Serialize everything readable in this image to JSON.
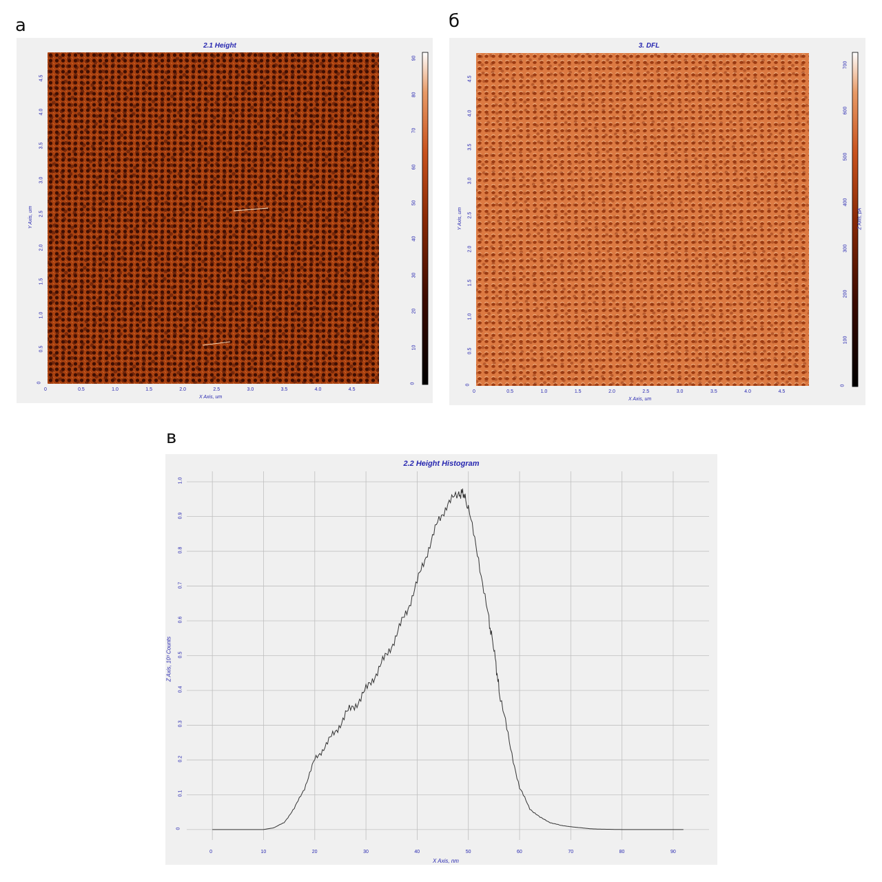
{
  "labels": {
    "a": "а",
    "b": "б",
    "c": "в"
  },
  "colors": {
    "frame_bg": "#f0f0f0",
    "axis_text": "#2727b0",
    "curve": "#333333",
    "grid": "#bfbfbf"
  },
  "chart_data": [
    {
      "type": "heatmap",
      "title": "2.1 Height",
      "xlabel": "X Axis, um",
      "ylabel": "Y Axis, um",
      "zlabel": "",
      "xlim": [
        0,
        4.9
      ],
      "ylim": [
        0,
        4.9
      ],
      "x_ticks": [
        "0",
        "0.5",
        "1.0",
        "1.5",
        "2.0",
        "2.5",
        "3.0",
        "3.5",
        "4.0",
        "4.5"
      ],
      "y_ticks": [
        "0",
        "0.5",
        "1.0",
        "1.5",
        "2.0",
        "2.5",
        "3.0",
        "3.5",
        "4.0",
        "4.5"
      ],
      "z_ticks": [
        "0",
        "10",
        "20",
        "30",
        "40",
        "50",
        "60",
        "70",
        "80",
        "90"
      ],
      "zlim": [
        0,
        92
      ],
      "colormap": [
        "#000000",
        "#3a0a00",
        "#8a2a06",
        "#c8521e",
        "#e89a66",
        "#ffffff"
      ],
      "texture": "dense field of round dark pits on red-brown background"
    },
    {
      "type": "heatmap",
      "title": "3. DFL",
      "xlabel": "X Axis, um",
      "ylabel": "Y Axis, um",
      "zlabel": "Z Axis, pA",
      "xlim": [
        0,
        4.9
      ],
      "ylim": [
        0,
        4.9
      ],
      "x_ticks": [
        "0",
        "0.5",
        "1.0",
        "1.5",
        "2.0",
        "2.5",
        "3.0",
        "3.5",
        "4.0",
        "4.5"
      ],
      "y_ticks": [
        "0",
        "0.5",
        "1.0",
        "1.5",
        "2.0",
        "2.5",
        "3.0",
        "3.5",
        "4.0",
        "4.5"
      ],
      "z_ticks": [
        "0",
        "100",
        "200",
        "300",
        "400",
        "500",
        "600",
        "700"
      ],
      "zlim": [
        0,
        730
      ],
      "colormap": [
        "#000000",
        "#3a0a00",
        "#8a2a06",
        "#c8521e",
        "#e89a66",
        "#ffffff"
      ],
      "texture": "orange relief of pits with shading"
    },
    {
      "type": "line",
      "title": "2.2 Height Histogram",
      "xlabel": "X Axis, nm",
      "ylabel": "Z Axis, 10³ Counts",
      "xlim": [
        -5,
        97
      ],
      "ylim": [
        -0.03,
        1.03
      ],
      "x_ticks": [
        "0",
        "10",
        "20",
        "30",
        "40",
        "50",
        "60",
        "70",
        "80",
        "90"
      ],
      "y_ticks": [
        "0",
        "0.1",
        "0.2",
        "0.3",
        "0.4",
        "0.5",
        "0.6",
        "0.7",
        "0.8",
        "0.9",
        "1.0"
      ],
      "grid": true,
      "series": [
        {
          "x": [
            0,
            5,
            10,
            12,
            14,
            16,
            18,
            20,
            22,
            24,
            26,
            28,
            30,
            32,
            34,
            36,
            38,
            40,
            42,
            44,
            46,
            48,
            49,
            50,
            52,
            54,
            55,
            56,
            58,
            60,
            62,
            64,
            66,
            68,
            70,
            72,
            74,
            76,
            80,
            85,
            92
          ],
          "y": [
            0,
            0,
            0,
            0.005,
            0.02,
            0.06,
            0.12,
            0.2,
            0.24,
            0.28,
            0.33,
            0.36,
            0.4,
            0.45,
            0.5,
            0.56,
            0.63,
            0.71,
            0.8,
            0.88,
            0.94,
            0.96,
            0.97,
            0.92,
            0.78,
            0.6,
            0.52,
            0.4,
            0.25,
            0.12,
            0.06,
            0.035,
            0.02,
            0.012,
            0.008,
            0.005,
            0.002,
            0.001,
            0,
            0,
            0
          ]
        }
      ]
    }
  ]
}
